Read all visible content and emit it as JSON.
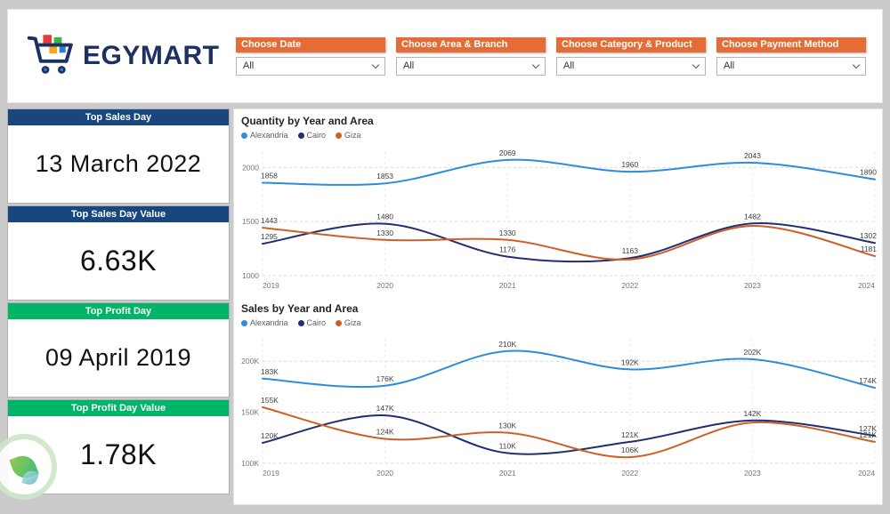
{
  "brand": {
    "name": "EGYMART"
  },
  "filters": [
    {
      "label": "Choose Date",
      "value": "All"
    },
    {
      "label": "Choose Area & Branch",
      "value": "All"
    },
    {
      "label": "Choose Category & Product",
      "value": "All"
    },
    {
      "label": "Choose Payment Method",
      "value": "All"
    }
  ],
  "kpis": [
    {
      "title": "Top Sales Day",
      "value": "13 March 2022"
    },
    {
      "title": "Top Sales Day Value",
      "value": "6.63K"
    },
    {
      "title": "Top Profit Day",
      "value": "09 April 2019"
    },
    {
      "title": "Top Profit Day Value",
      "value": "1.78K"
    }
  ],
  "colors": {
    "slicer_header": "#E66C37",
    "kpi_blue": "#17477E",
    "kpi_green": "#00B567",
    "alexandria": "#2E8CDB",
    "cairo": "#222E72",
    "giza": "#CE5F27"
  },
  "chart_data": [
    {
      "type": "line",
      "title": "Quantity by Year and Area",
      "xlabel": "",
      "ylabel": "",
      "x": [
        "2019",
        "2020",
        "2021",
        "2022",
        "2023",
        "2024"
      ],
      "ylim": [
        1000,
        2150
      ],
      "yticks": [
        {
          "v": 1000,
          "label": "1000"
        },
        {
          "v": 1500,
          "label": "1500"
        },
        {
          "v": 2000,
          "label": "2000"
        }
      ],
      "grid": true,
      "legend_position": "top-left",
      "series": [
        {
          "name": "Alexandria",
          "color": "#2E8CDB",
          "values": [
            1858,
            1853,
            2069,
            1960,
            2043,
            1890
          ],
          "labels": [
            "1858",
            "1853",
            "2069",
            "1960",
            "2043",
            "1890"
          ]
        },
        {
          "name": "Cairo",
          "color": "#222E72",
          "values": [
            1295,
            1480,
            1176,
            1163,
            1482,
            1302
          ],
          "labels": [
            "1295",
            "1480",
            "1176",
            "1163",
            "1482",
            "1302"
          ]
        },
        {
          "name": "Giza",
          "color": "#CE5F27",
          "values": [
            1443,
            1330,
            1330,
            1150,
            1460,
            1181
          ],
          "labels": [
            "1443",
            "1330",
            "1330",
            "",
            "",
            "1181"
          ]
        }
      ]
    },
    {
      "type": "line",
      "title": "Sales by Year and Area",
      "xlabel": "",
      "ylabel": "",
      "x": [
        "2019",
        "2020",
        "2021",
        "2022",
        "2023",
        "2024"
      ],
      "ylim": [
        100,
        222
      ],
      "yticks": [
        {
          "v": 100,
          "label": "100K"
        },
        {
          "v": 150,
          "label": "150K"
        },
        {
          "v": 200,
          "label": "200K"
        }
      ],
      "grid": true,
      "legend_position": "top-left",
      "series": [
        {
          "name": "Alexandria",
          "color": "#2E8CDB",
          "values": [
            183,
            176,
            210,
            192,
            202,
            174
          ],
          "labels": [
            "183K",
            "176K",
            "210K",
            "192K",
            "202K",
            "174K"
          ]
        },
        {
          "name": "Cairo",
          "color": "#222E72",
          "values": [
            120,
            147,
            110,
            121,
            142,
            127
          ],
          "labels": [
            "120K",
            "147K",
            "110K",
            "121K",
            "142K",
            "127K"
          ]
        },
        {
          "name": "Giza",
          "color": "#CE5F27",
          "values": [
            155,
            124,
            130,
            106,
            140,
            121
          ],
          "labels": [
            "155K",
            "124K",
            "130K",
            "106K",
            "",
            "121K"
          ]
        }
      ]
    }
  ]
}
